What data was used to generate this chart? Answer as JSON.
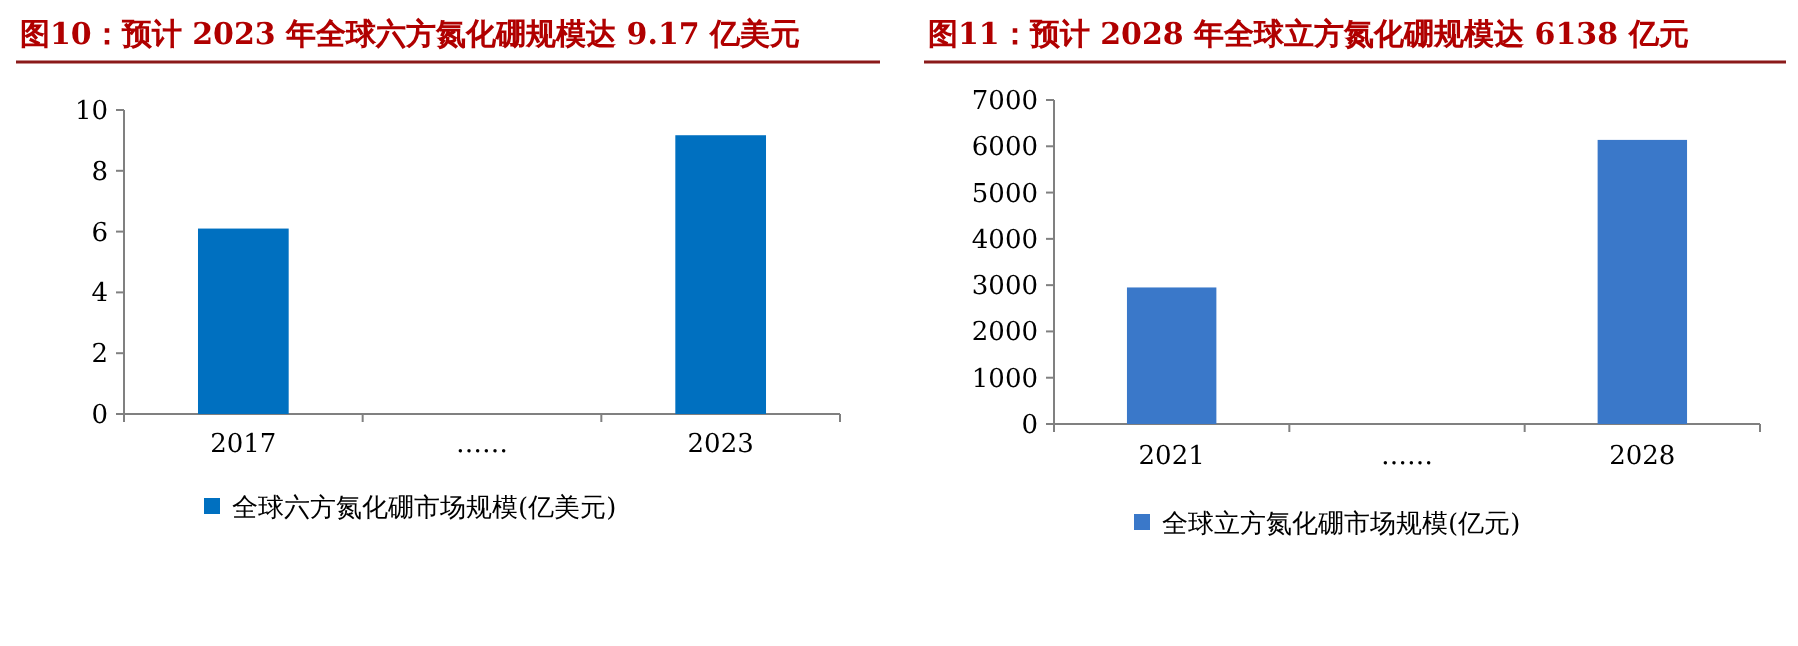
{
  "chart_data": [
    {
      "type": "bar",
      "title": "图10：预计 2023 年全球六方氮化硼规模达 9.17 亿美元",
      "categories": [
        "2017",
        "……",
        "2023"
      ],
      "ylim": [
        0,
        10
      ],
      "yticks": [
        0,
        2,
        4,
        6,
        8,
        10
      ],
      "legend": "bottom",
      "series": [
        {
          "name": "全球六方氮化硼市场规模(亿美元)",
          "color": "#0070c0",
          "values": [
            6.1,
            null,
            9.17
          ]
        }
      ]
    },
    {
      "type": "bar",
      "title": "图11：预计 2028 年全球立方氮化硼规模达 6138 亿元",
      "categories": [
        "2021",
        "……",
        "2028"
      ],
      "ylim": [
        0,
        7000
      ],
      "yticks": [
        0,
        1000,
        2000,
        3000,
        4000,
        5000,
        6000,
        7000
      ],
      "legend": "bottom",
      "series": [
        {
          "name": "全球立方氮化硼市场规模(亿元)",
          "color": "#3a78c9",
          "values": [
            2950,
            null,
            6138
          ]
        }
      ]
    }
  ]
}
